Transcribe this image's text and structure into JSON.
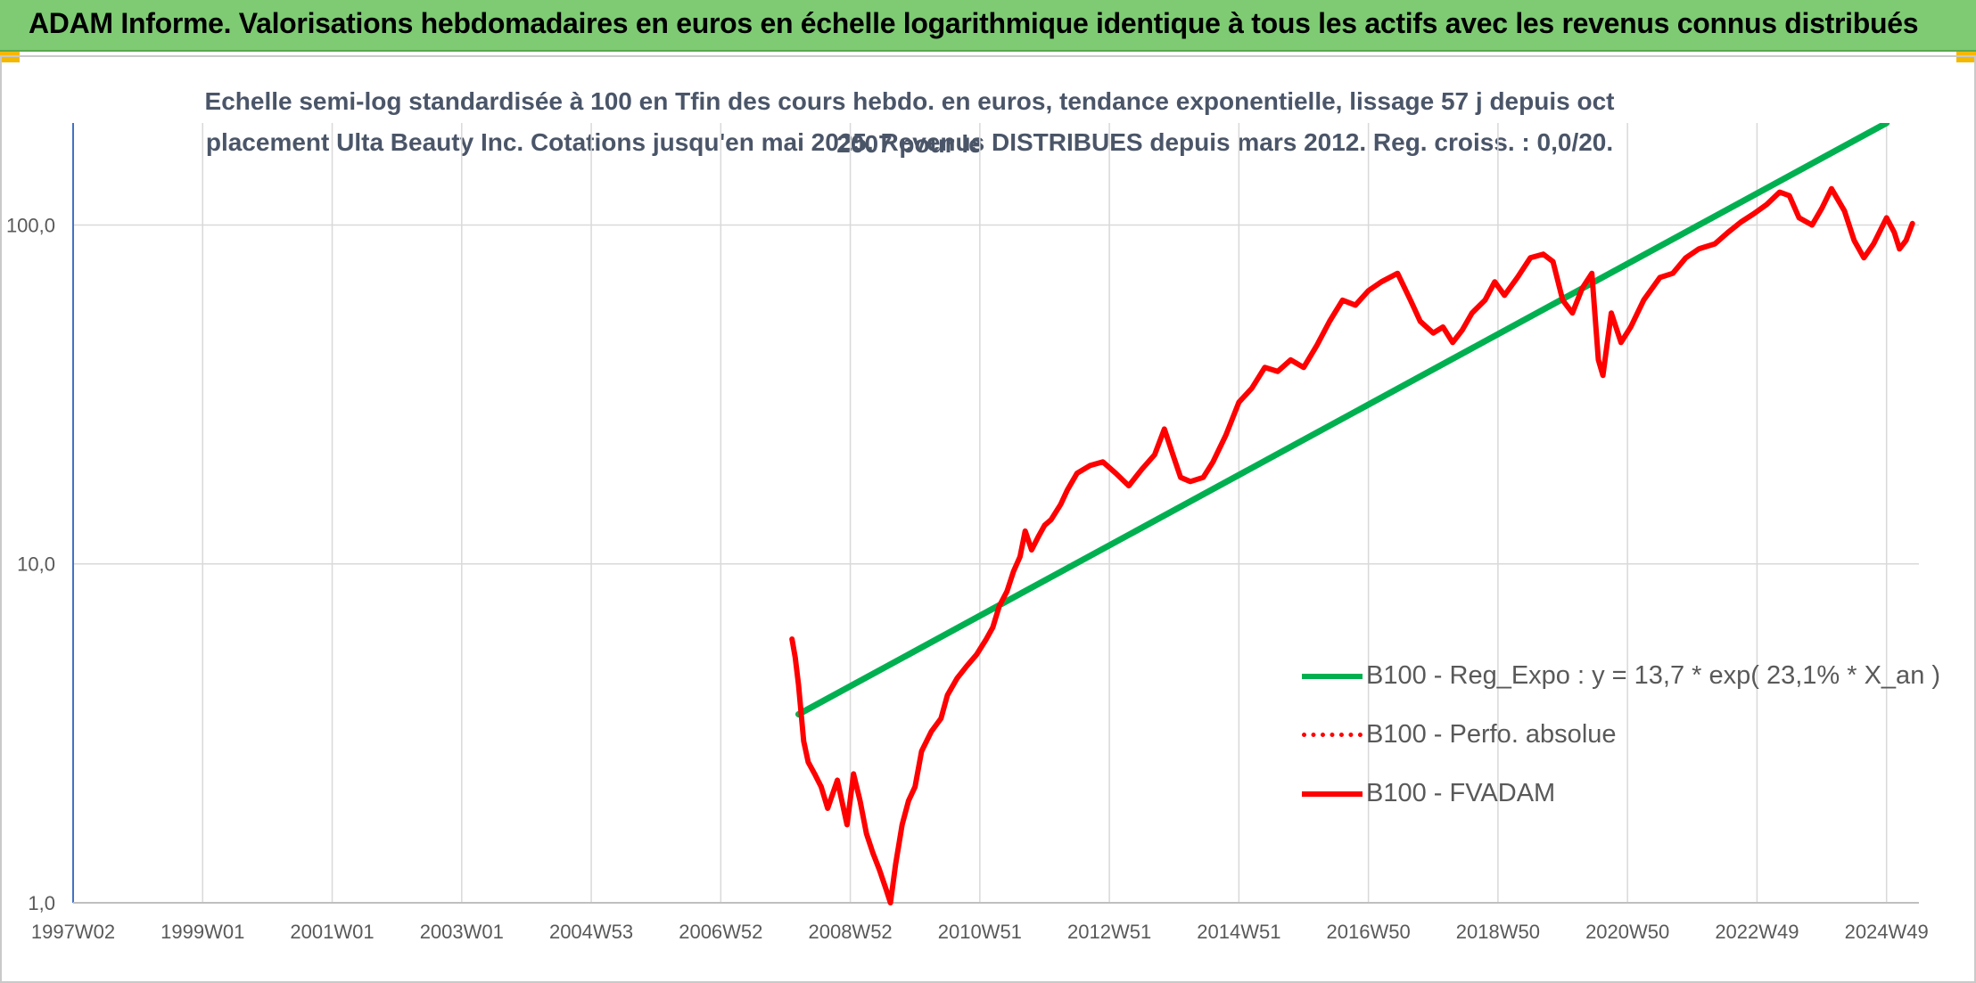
{
  "header": {
    "title": "ADAM Informe. Valorisations hebdomadaires en euros en échelle logarithmique identique à tous les actifs avec les revenus connus distribués"
  },
  "chart_data": {
    "type": "line",
    "title_line1": "Echelle semi-log standardisée à 100 en Tfin des cours hebdo. en euros, tendance exponentielle, lissage 57 j depuis oct 2007 pour le",
    "title_line2": "placement Ulta Beauty Inc. Cotations jusqu'en mai 2025. Revenus DISTRIBUES depuis mars 2012. Reg. croiss. : 0,0/20.",
    "y_scale": "log",
    "ylim": [
      1,
      200
    ],
    "y_ticks": [
      {
        "value": 1,
        "label": "1,0"
      },
      {
        "value": 10,
        "label": "10,0"
      },
      {
        "value": 100,
        "label": "100,0"
      }
    ],
    "x_ticks": [
      "1997W02",
      "1999W01",
      "2001W01",
      "2003W01",
      "2004W53",
      "2006W52",
      "2008W52",
      "2010W51",
      "2012W51",
      "2014W51",
      "2016W50",
      "2018W50",
      "2020W50",
      "2022W49",
      "2024W49"
    ],
    "x_tick_years": [
      1997.0,
      1999.0,
      2001.0,
      2003.0,
      2005.0,
      2007.0,
      2009.0,
      2011.0,
      2013.0,
      2015.0,
      2017.0,
      2019.0,
      2021.0,
      2023.0,
      2025.0
    ],
    "xlim": [
      1997.0,
      2025.5
    ],
    "grid": "vertical and horizontal",
    "legend_position": "bottom-right",
    "series": [
      {
        "name": "B100 - Reg_Expo : y = 13,7 * exp( 23,1% *  X_an )",
        "color": "#00b050",
        "style": "solid",
        "points": [
          [
            2008.2,
            3.6
          ],
          [
            2025.0,
            200
          ]
        ]
      },
      {
        "name": "B100 - Perfo. absolue",
        "color": "#ff0000",
        "style": "dotted",
        "points": []
      },
      {
        "name": "B100 - FVADAM",
        "color": "#ff0000",
        "style": "solid",
        "points": [
          [
            2008.1,
            6.0
          ],
          [
            2008.15,
            5.3
          ],
          [
            2008.2,
            4.4
          ],
          [
            2008.28,
            3.0
          ],
          [
            2008.35,
            2.6
          ],
          [
            2008.45,
            2.4
          ],
          [
            2008.55,
            2.2
          ],
          [
            2008.65,
            1.9
          ],
          [
            2008.8,
            2.3
          ],
          [
            2008.95,
            1.7
          ],
          [
            2009.05,
            2.4
          ],
          [
            2009.15,
            2.0
          ],
          [
            2009.25,
            1.6
          ],
          [
            2009.35,
            1.4
          ],
          [
            2009.45,
            1.25
          ],
          [
            2009.55,
            1.1
          ],
          [
            2009.62,
            1.0
          ],
          [
            2009.7,
            1.3
          ],
          [
            2009.8,
            1.7
          ],
          [
            2009.9,
            2.0
          ],
          [
            2010.0,
            2.2
          ],
          [
            2010.1,
            2.8
          ],
          [
            2010.25,
            3.2
          ],
          [
            2010.4,
            3.5
          ],
          [
            2010.5,
            4.1
          ],
          [
            2010.65,
            4.6
          ],
          [
            2010.8,
            5.0
          ],
          [
            2010.95,
            5.4
          ],
          [
            2011.1,
            6.0
          ],
          [
            2011.2,
            6.5
          ],
          [
            2011.3,
            7.5
          ],
          [
            2011.42,
            8.3
          ],
          [
            2011.52,
            9.5
          ],
          [
            2011.62,
            10.5
          ],
          [
            2011.7,
            12.5
          ],
          [
            2011.8,
            11.0
          ],
          [
            2011.9,
            12.0
          ],
          [
            2012.0,
            13.0
          ],
          [
            2012.1,
            13.5
          ],
          [
            2012.25,
            15.0
          ],
          [
            2012.35,
            16.5
          ],
          [
            2012.5,
            18.5
          ],
          [
            2012.7,
            19.5
          ],
          [
            2012.9,
            20.0
          ],
          [
            2013.1,
            18.5
          ],
          [
            2013.3,
            17.0
          ],
          [
            2013.5,
            19.0
          ],
          [
            2013.7,
            21.0
          ],
          [
            2013.85,
            25.0
          ],
          [
            2014.0,
            20.5
          ],
          [
            2014.1,
            18.0
          ],
          [
            2014.25,
            17.5
          ],
          [
            2014.45,
            18.0
          ],
          [
            2014.6,
            20.0
          ],
          [
            2014.8,
            24.0
          ],
          [
            2015.0,
            30.0
          ],
          [
            2015.2,
            33.0
          ],
          [
            2015.4,
            38.0
          ],
          [
            2015.6,
            37.0
          ],
          [
            2015.8,
            40.0
          ],
          [
            2016.0,
            38.0
          ],
          [
            2016.2,
            44.0
          ],
          [
            2016.4,
            52.0
          ],
          [
            2016.6,
            60.0
          ],
          [
            2016.8,
            58.0
          ],
          [
            2017.0,
            64.0
          ],
          [
            2017.2,
            68.0
          ],
          [
            2017.45,
            72.0
          ],
          [
            2017.65,
            60.0
          ],
          [
            2017.8,
            52.0
          ],
          [
            2018.0,
            48.0
          ],
          [
            2018.15,
            50.0
          ],
          [
            2018.3,
            45.0
          ],
          [
            2018.45,
            49.0
          ],
          [
            2018.6,
            55.0
          ],
          [
            2018.8,
            60.0
          ],
          [
            2018.95,
            68.0
          ],
          [
            2019.1,
            62.0
          ],
          [
            2019.3,
            70.0
          ],
          [
            2019.5,
            80.0
          ],
          [
            2019.7,
            82.0
          ],
          [
            2019.85,
            78.0
          ],
          [
            2020.0,
            60.0
          ],
          [
            2020.15,
            55.0
          ],
          [
            2020.3,
            65.0
          ],
          [
            2020.45,
            72.0
          ],
          [
            2020.55,
            40.0
          ],
          [
            2020.62,
            36.0
          ],
          [
            2020.75,
            55.0
          ],
          [
            2020.9,
            45.0
          ],
          [
            2021.05,
            50.0
          ],
          [
            2021.25,
            60.0
          ],
          [
            2021.5,
            70.0
          ],
          [
            2021.7,
            72.0
          ],
          [
            2021.9,
            80.0
          ],
          [
            2022.1,
            85.0
          ],
          [
            2022.35,
            88.0
          ],
          [
            2022.55,
            95.0
          ],
          [
            2022.75,
            102.0
          ],
          [
            2022.95,
            108.0
          ],
          [
            2023.15,
            115.0
          ],
          [
            2023.35,
            125.0
          ],
          [
            2023.5,
            122.0
          ],
          [
            2023.65,
            105.0
          ],
          [
            2023.85,
            100.0
          ],
          [
            2024.0,
            112.0
          ],
          [
            2024.15,
            128.0
          ],
          [
            2024.35,
            110.0
          ],
          [
            2024.5,
            90.0
          ],
          [
            2024.65,
            80.0
          ],
          [
            2024.8,
            88.0
          ],
          [
            2025.0,
            105.0
          ],
          [
            2025.12,
            95.0
          ],
          [
            2025.2,
            85.0
          ],
          [
            2025.3,
            90.0
          ],
          [
            2025.4,
            101.0
          ]
        ]
      }
    ]
  }
}
